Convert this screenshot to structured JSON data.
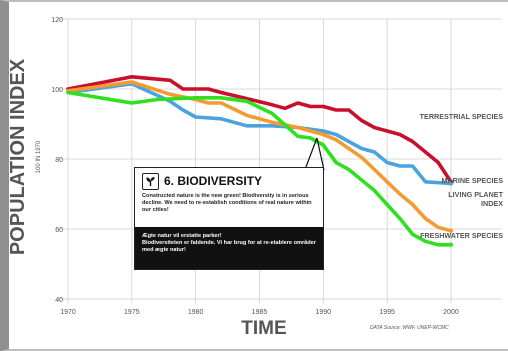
{
  "chart_data": {
    "type": "line",
    "xlabel": "TIME",
    "ylabel": "POPULATION INDEX",
    "ylabel_sub": "100 IN 1970",
    "xlim": [
      1970,
      2004
    ],
    "ylim": [
      40,
      120
    ],
    "xticks": [
      "1970",
      "1975",
      "1980",
      "1985",
      "1990",
      "1995",
      "2000"
    ],
    "yticks": [
      "40",
      "60",
      "80",
      "100",
      "120"
    ],
    "grid": true,
    "source_note": "DATA Source: WWF, UNEP-WCMC",
    "series": [
      {
        "name": "TERRESTRIAL SPECIES",
        "label_lines": [
          "TERRESTRIAL SPECIES"
        ],
        "color": "#c8102e",
        "x": [
          1970,
          1975,
          1978,
          1979,
          1981,
          1982,
          1986,
          1987,
          1988,
          1989,
          1990,
          1991,
          1992,
          1993,
          1994,
          1995,
          1996,
          1997,
          1998,
          1999,
          2000
        ],
        "y": [
          100,
          103.5,
          102.5,
          100,
          100,
          99,
          95.5,
          94.5,
          96,
          95,
          95,
          94,
          94,
          91,
          89,
          88,
          87,
          85,
          82,
          79,
          73.5
        ]
      },
      {
        "name": "MARINE SPECIES",
        "label_lines": [
          "MARINE SPECIES"
        ],
        "color": "#4aa3df",
        "x": [
          1970,
          1975,
          1978,
          1979,
          1980,
          1982,
          1984,
          1986,
          1988,
          1990,
          1991,
          1992,
          1993,
          1994,
          1995,
          1996,
          1997,
          1998,
          2000
        ],
        "y": [
          99,
          101.5,
          96.5,
          94,
          92,
          91.5,
          89.5,
          89.5,
          89,
          88,
          87,
          85,
          83,
          82,
          79,
          78,
          78,
          73.5,
          73
        ]
      },
      {
        "name": "LIVING PLANET INDEX",
        "label_lines": [
          "LIVING PLANET",
          "INDEX"
        ],
        "color": "#f39a32",
        "x": [
          1970,
          1975,
          1978,
          1980,
          1981,
          1982,
          1984,
          1986,
          1988,
          1990,
          1991,
          1992,
          1993,
          1994,
          1995,
          1996,
          1997,
          1998,
          1999,
          2000
        ],
        "y": [
          99.5,
          102,
          98.5,
          97,
          96,
          96,
          92.5,
          90.5,
          89,
          87,
          85.5,
          83,
          80.5,
          77,
          73.5,
          70,
          67,
          63,
          60.5,
          59.5
        ]
      },
      {
        "name": "FRESHWATER SPECIES",
        "label_lines": [
          "FRESHWATER SPECIES"
        ],
        "color": "#2ee01f",
        "x": [
          1970,
          1975,
          1977,
          1980,
          1982,
          1984,
          1986,
          1988,
          1989,
          1990,
          1991,
          1992,
          1993,
          1994,
          1995,
          1996,
          1997,
          1998,
          1999,
          2000
        ],
        "y": [
          99,
          96,
          97,
          97.5,
          97.5,
          96.5,
          93,
          86.5,
          86,
          84,
          79,
          77,
          74,
          71,
          67,
          63,
          58.5,
          56.5,
          55.5,
          55.5
        ]
      }
    ]
  },
  "infobox": {
    "title": "6. BIODIVERSITY",
    "text_en": "Constructed nature is the new green! Biodiversity is in serious decline. We need to re-establish conditions of real nature within our cities!",
    "text_da_1": "Ægte natur vil erstatte parker!",
    "text_da_2": "Biodiversiteten er faldende. Vi har brug for at re-etablere områder med ægte natur!",
    "icon": "plant-icon"
  }
}
